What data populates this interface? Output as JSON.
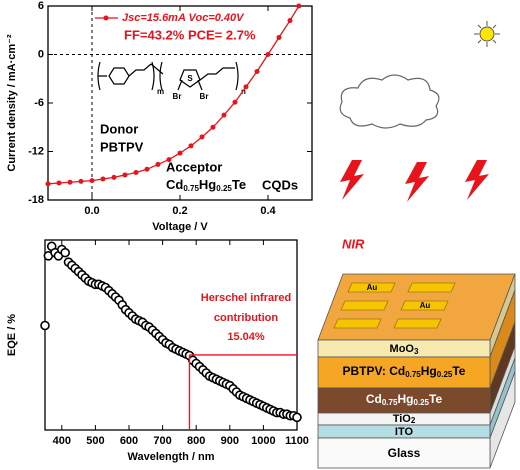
{
  "chart_data": [
    {
      "type": "line",
      "x": [
        -0.1,
        -0.075,
        -0.05,
        -0.025,
        0,
        0.025,
        0.05,
        0.075,
        0.1,
        0.125,
        0.15,
        0.175,
        0.2,
        0.225,
        0.25,
        0.275,
        0.3,
        0.325,
        0.35,
        0.375,
        0.4,
        0.425,
        0.45,
        0.47
      ],
      "series": [
        {
          "name": "Jsc=15.6mA  Voc=0.40V",
          "color": "#e8141b",
          "values": [
            -16.0,
            -15.9,
            -15.8,
            -15.7,
            -15.6,
            -15.4,
            -15.2,
            -14.9,
            -14.6,
            -14.2,
            -13.6,
            -13.0,
            -12.2,
            -11.3,
            -10.2,
            -9.0,
            -7.5,
            -5.9,
            -4.0,
            -2.1,
            0,
            2.1,
            4.2,
            6.0
          ]
        }
      ],
      "annotations": [
        "FF=43.2%  PCE= 2.7%",
        "Donor",
        "PBTPV",
        "Acceptor",
        "CQDs"
      ],
      "acceptor_formula": [
        "Cd",
        "0.75",
        "Hg",
        "0.25",
        "Te"
      ],
      "structure_labels": [
        "m",
        "n",
        "S",
        "Br",
        "Br"
      ],
      "xlabel": "Voltage / V",
      "ylabel": "Current density / mA·cm⁻²",
      "xlim": [
        -0.1,
        0.5
      ],
      "xticks": [
        {
          "value": 0,
          "label": "0.0"
        },
        {
          "value": 0.2,
          "label": "0.2"
        },
        {
          "value": 0.4,
          "label": "0.4"
        }
      ],
      "ylim": [
        -18,
        6
      ],
      "yticks": [
        -18,
        -12,
        -6,
        0,
        6
      ],
      "zero_lines": true
    },
    {
      "type": "scatter",
      "x": [
        350,
        360,
        370,
        380,
        390,
        400,
        410,
        420,
        430,
        440,
        450,
        460,
        470,
        480,
        490,
        500,
        510,
        520,
        530,
        540,
        550,
        560,
        570,
        580,
        590,
        600,
        610,
        620,
        630,
        640,
        650,
        660,
        670,
        680,
        690,
        700,
        710,
        720,
        730,
        740,
        750,
        760,
        770,
        780,
        790,
        800,
        810,
        820,
        830,
        840,
        850,
        860,
        870,
        880,
        890,
        900,
        910,
        920,
        930,
        940,
        950,
        960,
        970,
        980,
        990,
        1000,
        1010,
        1020,
        1030,
        1040,
        1050,
        1060,
        1070,
        1080,
        1090,
        1100
      ],
      "series": [
        {
          "color": "#000000",
          "values": [
            33,
            55,
            58,
            56,
            55,
            57,
            56,
            53,
            52,
            51,
            50,
            49,
            48,
            47,
            46.5,
            46,
            46,
            45.5,
            45,
            44,
            43,
            42,
            41,
            39.5,
            38,
            37,
            36,
            35,
            34.5,
            34,
            33,
            32.5,
            31.5,
            30.5,
            29.5,
            28.5,
            27.5,
            27,
            26,
            25.5,
            25,
            24.5,
            24,
            23.5,
            22,
            21,
            20,
            19,
            18,
            17,
            16.5,
            16,
            15.5,
            15,
            14.5,
            14,
            13,
            12,
            11,
            10.5,
            10,
            9.5,
            9,
            8.5,
            8,
            7.5,
            7,
            6.5,
            6,
            5.5,
            5.5,
            5,
            5,
            4.5,
            4.5,
            4
          ]
        }
      ],
      "annotations": [
        "Herschel infrared",
        "contribution",
        "15.04%"
      ],
      "annotation_color": "#e8141b",
      "cutoff": {
        "x": 780,
        "y": 23.7
      },
      "xlabel": "Wavelength / nm",
      "ylabel": "EQE / %",
      "xlim": [
        350,
        1100
      ],
      "xticks": [
        400,
        500,
        600,
        700,
        800,
        900,
        1000,
        1100
      ],
      "ylim": [
        0,
        60
      ]
    }
  ],
  "diagram": {
    "light_label": "NIR",
    "electrodes": [
      "Au",
      "Au"
    ],
    "layers": [
      [
        "MoO",
        "3"
      ],
      [
        "PBTPV: Cd",
        "0.75",
        "Hg",
        "0.25",
        "Te"
      ],
      [
        "Cd",
        "0.75",
        "Hg",
        "0.25",
        "Te"
      ],
      [
        "TiO",
        "2"
      ],
      [
        "ITO"
      ],
      [
        "Glass"
      ]
    ]
  }
}
